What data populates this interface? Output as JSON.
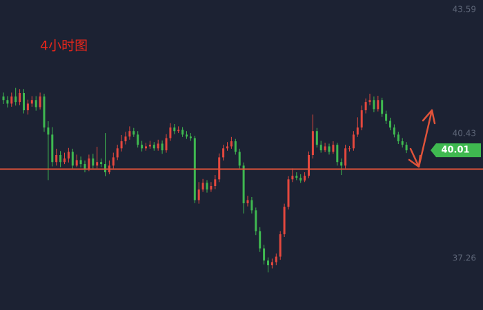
{
  "chart_data": {
    "type": "candlestick",
    "annotation": "4小时图",
    "open": [
      41.38,
      41.29,
      41.2,
      41.38,
      41.24,
      41.47,
      41.03,
      41.2,
      41.29,
      41.11,
      41.38,
      40.59,
      40.41,
      39.71,
      39.89,
      39.71,
      39.8,
      39.97,
      39.62,
      39.76,
      39.66,
      39.53,
      39.8,
      39.62,
      39.71,
      39.66,
      39.45,
      39.62,
      39.83,
      40.06,
      40.24,
      40.36,
      40.5,
      40.41,
      40.15,
      40.06,
      40.11,
      40.15,
      40.06,
      40.18,
      40.01,
      40.32,
      40.59,
      40.5,
      40.53,
      40.41,
      40.36,
      40.32,
      38.74,
      39.01,
      39.18,
      39.01,
      39.1,
      39.27,
      39.83,
      40.06,
      40.11,
      40.24,
      39.97,
      39.62,
      38.66,
      38.74,
      38.48,
      37.95,
      37.51,
      37.2,
      37.08,
      37.16,
      37.3,
      37.87,
      38.57,
      39.27,
      39.36,
      39.31,
      39.24,
      39.36,
      39.89,
      40.5,
      40.15,
      40.01,
      40.11,
      39.97,
      40.15,
      39.71,
      39.62,
      40.06,
      40.06,
      40.41,
      40.59,
      41.03,
      41.24,
      41.29,
      41.06,
      41.29,
      40.94,
      40.76,
      40.59,
      40.41,
      40.24,
      40.15
    ],
    "high": [
      41.48,
      41.39,
      41.48,
      41.6,
      41.57,
      41.57,
      41.3,
      41.39,
      41.39,
      41.48,
      41.45,
      40.75,
      40.6,
      40.05,
      39.99,
      39.95,
      40.07,
      40.05,
      39.9,
      39.85,
      39.75,
      39.9,
      39.92,
      40.1,
      39.8,
      40.45,
      39.75,
      39.95,
      40.15,
      40.4,
      40.48,
      40.62,
      40.58,
      40.5,
      40.25,
      40.2,
      40.25,
      40.22,
      40.28,
      40.26,
      40.42,
      40.7,
      40.68,
      40.62,
      40.6,
      40.5,
      40.45,
      40.38,
      39.2,
      39.28,
      39.25,
      39.2,
      39.38,
      39.93,
      40.15,
      40.22,
      40.35,
      40.3,
      40.05,
      39.7,
      38.85,
      38.82,
      38.55,
      38.05,
      37.6,
      37.28,
      37.25,
      37.38,
      37.95,
      38.65,
      39.35,
      39.55,
      39.45,
      39.4,
      39.45,
      39.98,
      40.92,
      40.58,
      40.25,
      40.2,
      40.18,
      40.24,
      40.2,
      39.8,
      40.15,
      40.12,
      40.5,
      40.85,
      41.15,
      41.33,
      41.45,
      41.38,
      41.4,
      41.35,
      41.02,
      40.84,
      40.67,
      40.48,
      40.32,
      40.22
    ],
    "low": [
      41.19,
      41.1,
      41.12,
      41.15,
      41.16,
      40.95,
      40.92,
      41.12,
      41.02,
      41.05,
      40.48,
      39.25,
      39.6,
      39.62,
      39.58,
      39.66,
      39.7,
      39.55,
      39.58,
      39.57,
      39.45,
      39.48,
      39.55,
      39.55,
      39.58,
      39.35,
      39.4,
      39.55,
      39.76,
      39.98,
      40.16,
      40.28,
      40.35,
      40.08,
      39.98,
      40.0,
      40.05,
      40.0,
      40.0,
      39.92,
      39.95,
      40.25,
      40.42,
      40.45,
      40.35,
      40.3,
      40.25,
      38.66,
      38.65,
      38.95,
      38.93,
      38.95,
      39.02,
      39.2,
      39.75,
      40.0,
      40.05,
      39.9,
      39.55,
      38.4,
      38.58,
      38.4,
      37.85,
      37.42,
      37.1,
      36.9,
      37.0,
      37.08,
      37.22,
      37.8,
      38.5,
      39.2,
      39.25,
      39.18,
      39.2,
      39.3,
      39.8,
      40.08,
      39.95,
      39.96,
      39.9,
      39.92,
      39.62,
      39.38,
      39.55,
      39.98,
      40.0,
      40.35,
      40.52,
      40.95,
      41.16,
      40.98,
      41.0,
      40.86,
      40.68,
      40.52,
      40.34,
      40.17,
      40.08,
      39.94
    ],
    "close": [
      41.29,
      41.2,
      41.38,
      41.24,
      41.47,
      41.03,
      41.2,
      41.29,
      41.11,
      41.38,
      40.59,
      40.41,
      39.71,
      39.89,
      39.71,
      39.8,
      39.97,
      39.62,
      39.76,
      39.66,
      39.53,
      39.8,
      39.62,
      39.71,
      39.66,
      39.45,
      39.62,
      39.83,
      40.06,
      40.24,
      40.36,
      40.5,
      40.41,
      40.15,
      40.06,
      40.11,
      40.15,
      40.06,
      40.18,
      40.01,
      40.32,
      40.59,
      40.5,
      40.53,
      40.41,
      40.36,
      40.32,
      38.74,
      39.01,
      39.18,
      39.01,
      39.1,
      39.27,
      39.83,
      40.06,
      40.11,
      40.24,
      39.97,
      39.62,
      38.66,
      38.74,
      38.48,
      37.95,
      37.51,
      37.2,
      37.08,
      37.16,
      37.3,
      37.87,
      38.57,
      39.27,
      39.36,
      39.31,
      39.24,
      39.36,
      39.89,
      40.5,
      40.15,
      40.01,
      40.11,
      39.97,
      40.15,
      39.71,
      39.62,
      40.06,
      40.06,
      40.41,
      40.59,
      41.03,
      41.24,
      41.29,
      41.06,
      41.29,
      40.94,
      40.76,
      40.59,
      40.41,
      40.24,
      40.15,
      40.01
    ],
    "up_color": "#e5483e",
    "down_color": "#3fb950",
    "ylim": [
      35.94,
      43.84
    ],
    "yticks": [
      37.26,
      40.43,
      43.59
    ],
    "last_price": 40.01,
    "last_price_color": "#3fb950",
    "support_line": 39.53,
    "support_color": "#e0533a"
  }
}
